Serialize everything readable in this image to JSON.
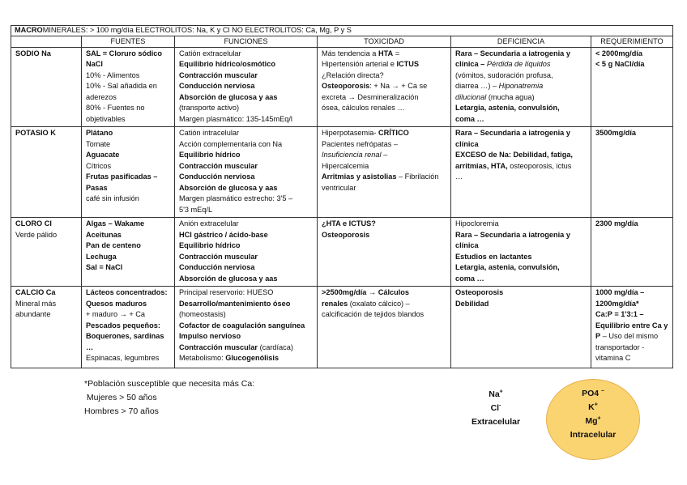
{
  "title": {
    "bold": "MACRO",
    "rest": "MINERALES: > 100 mg/día    ELECTROLITOS: Na, K y Cl     NO ELECTROLITOS: Ca, Mg, P y S"
  },
  "headers": [
    "",
    "FUENTES",
    "FUNCIONES",
    "TOXICIDAD",
    "DEFICIENCIA",
    "REQUERIMIENTO"
  ],
  "rows": [
    {
      "name": "sodio",
      "cells": [
        [
          [
            {
              "t": "SODIO Na",
              "s": "b"
            }
          ]
        ],
        [
          [
            {
              "t": "SAL = Cloruro sódico",
              "s": "b"
            }
          ],
          [
            {
              "t": "NaCl",
              "s": "b"
            }
          ],
          [
            {
              "t": "10% - Alimentos",
              "s": ""
            }
          ],
          [
            {
              "t": "10% - Sal añadida en",
              "s": ""
            }
          ],
          [
            {
              "t": "aderezos",
              "s": ""
            }
          ],
          [
            {
              "t": "80% - Fuentes no",
              "s": ""
            }
          ],
          [
            {
              "t": "objetivables",
              "s": ""
            }
          ]
        ],
        [
          [
            {
              "t": "Catión extracelular",
              "s": ""
            }
          ],
          [
            {
              "t": "Equilibrio hídrico/osmótico",
              "s": "b"
            }
          ],
          [
            {
              "t": "Contracción muscular",
              "s": "b"
            }
          ],
          [
            {
              "t": "Conducción nerviosa",
              "s": "b"
            }
          ],
          [
            {
              "t": "Absorción de glucosa y aas",
              "s": "b"
            }
          ],
          [
            {
              "t": "(transporte activo)",
              "s": ""
            }
          ],
          [
            {
              "t": "Margen plasmático: 135-145mEq/l",
              "s": ""
            }
          ]
        ],
        [
          [
            {
              "t": "Más tendencia a ",
              "s": ""
            },
            {
              "t": "HTA",
              "s": "b"
            },
            {
              "t": " =",
              "s": ""
            }
          ],
          [
            {
              "t": "Hipertensión arterial e ",
              "s": ""
            },
            {
              "t": "ICTUS",
              "s": "b"
            }
          ],
          [
            {
              "t": "¿Relación directa?",
              "s": ""
            }
          ],
          [
            {
              "t": "Osteoporosis",
              "s": "b"
            },
            {
              "t": ": + Na → + Ca se",
              "s": ""
            }
          ],
          [
            {
              "t": "excreta → Desmineralización",
              "s": ""
            }
          ],
          [
            {
              "t": "ósea, cálculos renales …",
              "s": ""
            }
          ]
        ],
        [
          [
            {
              "t": "Rara – Secundaria a iatrogenia y",
              "s": "b"
            }
          ],
          [
            {
              "t": "clínica – ",
              "s": "b"
            },
            {
              "t": "Pérdida de líquidos",
              "s": "i"
            }
          ],
          [
            {
              "t": "(vómitos, sudoración profusa,",
              "s": ""
            }
          ],
          [
            {
              "t": "diarrea …) – ",
              "s": ""
            },
            {
              "t": "Hiponatremia",
              "s": "i"
            }
          ],
          [
            {
              "t": "dilucional",
              "s": "i"
            },
            {
              "t": " (mucha agua)",
              "s": ""
            }
          ],
          [
            {
              "t": "Letargia, astenia, convulsión,",
              "s": "b"
            }
          ],
          [
            {
              "t": "coma …",
              "s": "b"
            }
          ]
        ],
        [
          [
            {
              "t": "< 2000mg/día",
              "s": "b"
            }
          ],
          [
            {
              "t": "< 5 g NaCl/día",
              "s": "b"
            }
          ]
        ]
      ]
    },
    {
      "name": "potasio",
      "cells": [
        [
          [
            {
              "t": "POTASIO K",
              "s": "b"
            }
          ]
        ],
        [
          [
            {
              "t": "Plátano",
              "s": "b"
            }
          ],
          [
            {
              "t": "Tomate",
              "s": ""
            }
          ],
          [
            {
              "t": "Aguacate",
              "s": "b"
            }
          ],
          [
            {
              "t": "Cítricos",
              "s": ""
            }
          ],
          [
            {
              "t": "Frutas pasificadas –",
              "s": "b"
            }
          ],
          [
            {
              "t": "Pasas",
              "s": "b"
            }
          ],
          [
            {
              "t": "café sin infusión",
              "s": ""
            }
          ]
        ],
        [
          [
            {
              "t": "Catión intracelular",
              "s": ""
            }
          ],
          [
            {
              "t": "Acción complementaria con Na",
              "s": ""
            }
          ],
          [
            {
              "t": "Equilibrio hídrico",
              "s": "b"
            }
          ],
          [
            {
              "t": "Contracción muscular",
              "s": "b"
            }
          ],
          [
            {
              "t": "Conducción nerviosa",
              "s": "b"
            }
          ],
          [
            {
              "t": "Absorción de glucosa y aas",
              "s": "b"
            }
          ],
          [
            {
              "t": "Margen plasmático estrecho: 3'5 –",
              "s": ""
            }
          ],
          [
            {
              "t": "5'3 mEq/L",
              "s": ""
            }
          ]
        ],
        [
          [
            {
              "t": "Hiperpotasemia- ",
              "s": ""
            },
            {
              "t": "CRÍTICO",
              "s": "b"
            }
          ],
          [
            {
              "t": "Pacientes nefrópatas –",
              "s": ""
            }
          ],
          [
            {
              "t": "Insuficiencia renal",
              "s": "i"
            },
            {
              "t": " –",
              "s": ""
            }
          ],
          [
            {
              "t": "Hipercalcemia",
              "s": ""
            }
          ],
          [
            {
              "t": "Arritmias y asistolias",
              "s": "b"
            },
            {
              "t": " – Fibrilación",
              "s": ""
            }
          ],
          [
            {
              "t": "ventricular",
              "s": ""
            }
          ]
        ],
        [
          [
            {
              "t": "Rara – Secundaria a iatrogenia y",
              "s": "b"
            }
          ],
          [
            {
              "t": "clínica",
              "s": "b"
            }
          ],
          [
            {
              "t": "EXCESO de Na: Debilidad, fatiga,",
              "s": "b"
            }
          ],
          [
            {
              "t": "arritmias, HTA, ",
              "s": "b"
            },
            {
              "t": "osteoporosis, ictus",
              "s": ""
            }
          ],
          [
            {
              "t": "…",
              "s": ""
            }
          ]
        ],
        [
          [
            {
              "t": "3500mg/día",
              "s": "b"
            }
          ]
        ]
      ]
    },
    {
      "name": "cloro",
      "cells": [
        [
          [
            {
              "t": "CLORO Cl",
              "s": "b"
            }
          ],
          [
            {
              "t": "Verde pálido",
              "s": ""
            }
          ]
        ],
        [
          [
            {
              "t": "Algas – Wakame",
              "s": "b"
            }
          ],
          [
            {
              "t": "Aceitunas",
              "s": "b"
            }
          ],
          [
            {
              "t": "Pan de centeno",
              "s": "b"
            }
          ],
          [
            {
              "t": "Lechuga",
              "s": "b"
            }
          ],
          [
            {
              "t": "Sal = NaCl",
              "s": "b"
            }
          ]
        ],
        [
          [
            {
              "t": "Anión extracelular",
              "s": ""
            }
          ],
          [
            {
              "t": "HCl gástrico / ácido-base",
              "s": "b"
            }
          ],
          [
            {
              "t": "Equilibrio hídrico",
              "s": "b"
            }
          ],
          [
            {
              "t": "Contracción muscular",
              "s": "b"
            }
          ],
          [
            {
              "t": "Conducción nerviosa",
              "s": "b"
            }
          ],
          [
            {
              "t": "Absorción de glucosa y aas",
              "s": "b"
            }
          ]
        ],
        [
          [
            {
              "t": "¿HTA e ICTUS?",
              "s": "b"
            }
          ],
          [
            {
              "t": "Osteoporosis",
              "s": "b"
            }
          ]
        ],
        [
          [
            {
              "t": "Hipocloremia",
              "s": ""
            }
          ],
          [
            {
              "t": "Rara – Secundaria a iatrogenia y",
              "s": "b"
            }
          ],
          [
            {
              "t": "clínica",
              "s": "b"
            }
          ],
          [
            {
              "t": "Estudios en lactantes",
              "s": "b"
            }
          ],
          [
            {
              "t": "Letargia, astenia, convulsión,",
              "s": "b"
            }
          ],
          [
            {
              "t": "coma …",
              "s": "b"
            }
          ]
        ],
        [
          [
            {
              "t": "2300 mg/día",
              "s": "b"
            }
          ]
        ]
      ]
    },
    {
      "name": "calcio",
      "cells": [
        [
          [
            {
              "t": "CALCIO Ca",
              "s": "b"
            }
          ],
          [
            {
              "t": "Mineral más",
              "s": ""
            }
          ],
          [
            {
              "t": "abundante",
              "s": ""
            }
          ]
        ],
        [
          [
            {
              "t": "Lácteos concentrados:",
              "s": "b"
            }
          ],
          [
            {
              "t": "Quesos maduros",
              "s": "b"
            }
          ],
          [
            {
              "t": "+ maduro → + Ca",
              "s": ""
            }
          ],
          [
            {
              "t": "Pescados pequeños:",
              "s": "b"
            }
          ],
          [
            {
              "t": "Boquerones, sardinas",
              "s": "b"
            }
          ],
          [
            {
              "t": "…",
              "s": "b"
            }
          ],
          [
            {
              "t": "Espinacas, legumbres",
              "s": ""
            }
          ]
        ],
        [
          [
            {
              "t": "Principal reservorio: HUESO",
              "s": ""
            }
          ],
          [
            {
              "t": "Desarrollo/mantenimiento óseo",
              "s": "b"
            }
          ],
          [
            {
              "t": "(homeostasis)",
              "s": ""
            }
          ],
          [
            {
              "t": "Cofactor de coagulación sanguínea",
              "s": "b"
            }
          ],
          [
            {
              "t": "Impulso nervioso",
              "s": "b"
            }
          ],
          [
            {
              "t": "Contracción muscular",
              "s": "b"
            },
            {
              "t": " (cardíaca)",
              "s": ""
            }
          ],
          [
            {
              "t": "Metabolismo: ",
              "s": ""
            },
            {
              "t": "Glucogenólisis",
              "s": "b"
            }
          ]
        ],
        [
          [
            {
              "t": ">2500mg/día → Cálculos",
              "s": "b"
            }
          ],
          [
            {
              "t": "renales ",
              "s": "b"
            },
            {
              "t": "(oxalato cálcico) –",
              "s": ""
            }
          ],
          [
            {
              "t": "calcificación de tejidos blandos",
              "s": ""
            }
          ]
        ],
        [
          [
            {
              "t": "Osteoporosis",
              "s": "b"
            }
          ],
          [
            {
              "t": "Debilidad",
              "s": "b"
            }
          ]
        ],
        [
          [
            {
              "t": "1000 mg/día –",
              "s": "b"
            }
          ],
          [
            {
              "t": "1200mg/día*",
              "s": "b"
            }
          ],
          [
            {
              "t": "Ca:P = 1'3:1 –",
              "s": "b"
            }
          ],
          [
            {
              "t": "Equilibrio entre Ca y",
              "s": "b"
            }
          ],
          [
            {
              "t": "P",
              "s": "b"
            },
            {
              "t": " – Uso del mismo",
              "s": ""
            }
          ],
          [
            {
              "t": "transportador -",
              "s": ""
            }
          ],
          [
            {
              "t": "vitamina C",
              "s": ""
            }
          ]
        ]
      ]
    }
  ],
  "note": {
    "line1": "*Población susceptible que necesita más Ca:",
    "line2": " Mujeres > 50 años",
    "line3": "Hombres > 70 años"
  },
  "extracellular": {
    "ion1": "Na",
    "ion1_sup": "+",
    "ion2": "Cl",
    "ion2_sup": "-",
    "label": "Extracelular"
  },
  "intracellular": {
    "ion1": "PO4 ",
    "ion1_sup": "–",
    "ion2": "K",
    "ion2_sup": "+",
    "ion3": "Mg",
    "ion3_sup": "+",
    "label": "Intracelular",
    "color": "#fbd472"
  }
}
